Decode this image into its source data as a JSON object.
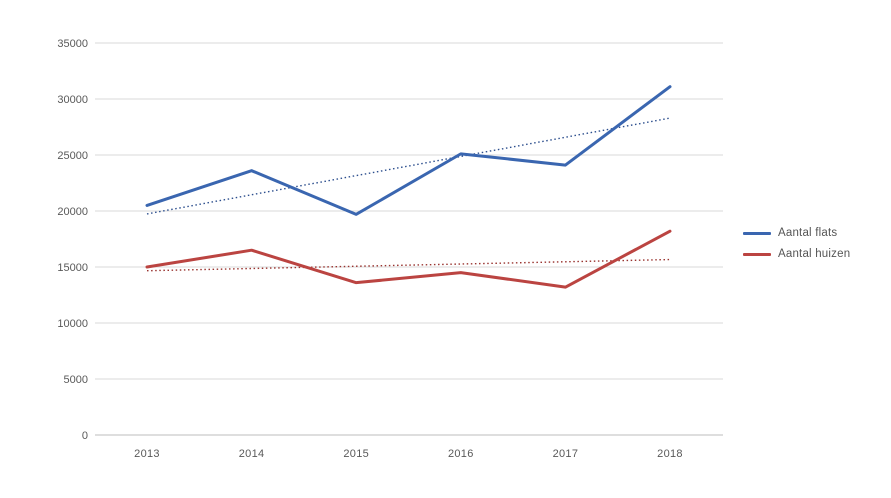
{
  "chart_data": {
    "type": "line",
    "title": "",
    "xlabel": "",
    "ylabel": "",
    "categories": [
      "2013",
      "2014",
      "2015",
      "2016",
      "2017",
      "2018"
    ],
    "series": [
      {
        "name": "Aantal flats",
        "color": "#3a66b0",
        "trend_color": "#2d4f8e",
        "values": [
          20500,
          23600,
          19700,
          25100,
          24100,
          31100
        ],
        "trendline": true
      },
      {
        "name": "Aantal huizen",
        "color": "#bb4441",
        "trend_color": "#99332f",
        "values": [
          15000,
          16500,
          13600,
          14500,
          13200,
          18200
        ],
        "trendline": true
      }
    ],
    "ylim": [
      0,
      35000
    ],
    "ytick_step": 5000,
    "grid": true,
    "legend_position": "right",
    "colors": {
      "tick_label": "#595959",
      "gridline": "#d9d9d9",
      "axis_line": "#bdbdbd",
      "background": "#ffffff"
    }
  }
}
